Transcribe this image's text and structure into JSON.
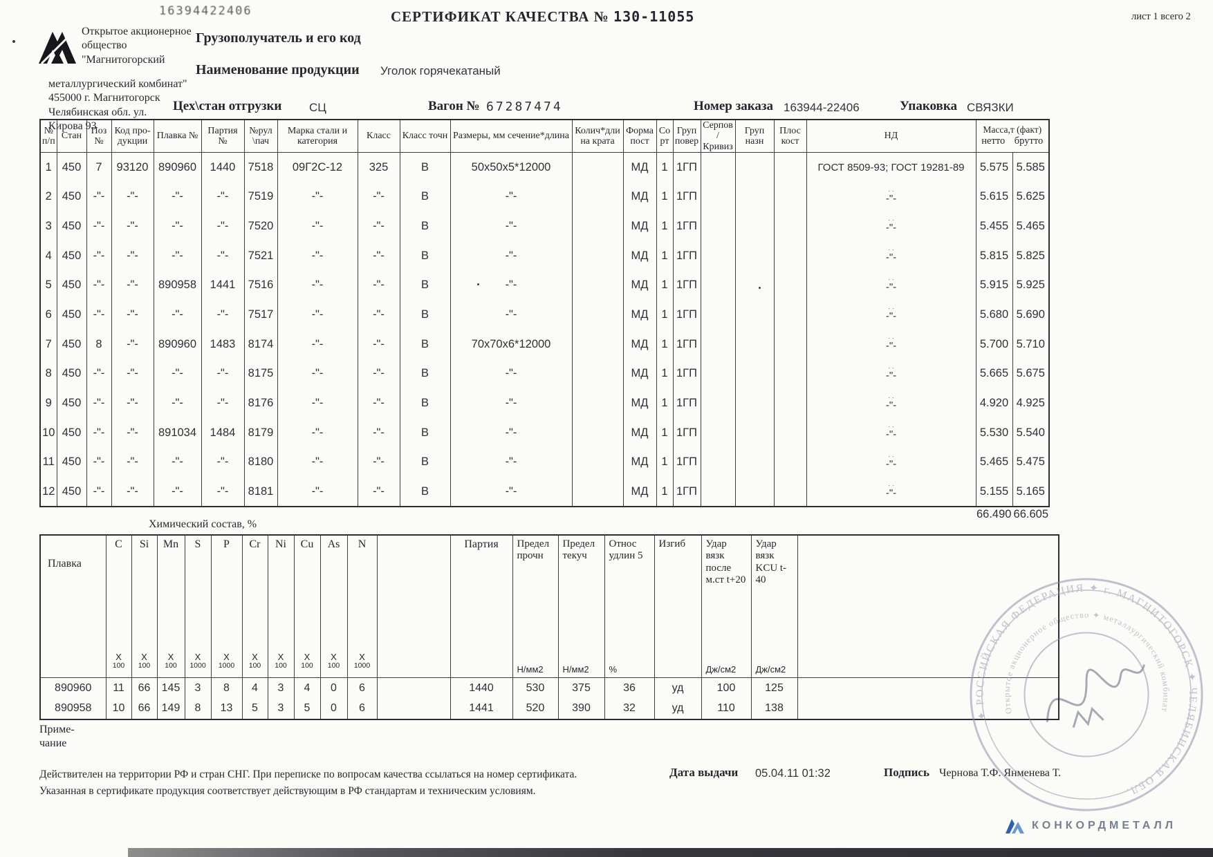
{
  "page": {
    "scan_number": "16394422406",
    "title": "СЕРТИФИКАТ КАЧЕСТВА №",
    "title_number": "130-11055",
    "sheet_label": "лист 1 всего 2",
    "company_lines_1": [
      "Открытое акционерное",
      "общество",
      "\"Магнитогорский"
    ],
    "company_lines_2": [
      "металлургический комбинат\"",
      "455000 г. Магнитогорск",
      "Челябинская обл.  ул.",
      "Кирова 93"
    ],
    "consignee_label": "Грузополучатель и его код",
    "product_label": "Наименование продукции",
    "product_value": "Уголок горячекатаный",
    "shop_label": "Цех\\стан отгрузки",
    "shop_value": "СЦ",
    "wagon_label": "Вагон №",
    "wagon_value": "67287474",
    "order_label": "Номер заказа",
    "order_value": "163944-22406",
    "packing_label": "Упаковка",
    "packing_value": "СВЯЗКИ"
  },
  "main_table": {
    "headers": [
      "№ п/п",
      "Стан",
      "Поз №",
      "Код про- дукции",
      "Плавка №",
      "Партия №",
      "№рул \\пач",
      "Марка стали и категория",
      "Класс",
      "Класс точн",
      "Размеры, мм сечение*длина",
      "Колич*дли на крата",
      "Форма пост",
      "Со рт",
      "Груп повер",
      "Серпов /Кривиз",
      "Груп назн",
      "Плос кост",
      "НД"
    ],
    "mass_header": "Масса,т (факт)",
    "mass_sub": [
      "нетто",
      "брутто"
    ],
    "rows": [
      [
        "1",
        "450",
        "7",
        "93120",
        "890960",
        "1440",
        "7518",
        "09Г2С-12",
        "325",
        "В",
        "50x50x5*12000",
        "",
        "МД",
        "1",
        "1ГП",
        "",
        "",
        "",
        "ГОСТ 8509-93; ГОСТ 19281-89",
        "5.575",
        "5.585"
      ],
      [
        "2",
        "450",
        "-\"-",
        "-\"-",
        "-\"-",
        "-\"-",
        "7519",
        "-\"-",
        "-\"-",
        "В",
        "-\"-",
        "",
        "МД",
        "1",
        "1ГП",
        "",
        "",
        "",
        "-\"-",
        "5.615",
        "5.625"
      ],
      [
        "3",
        "450",
        "-\"-",
        "-\"-",
        "-\"-",
        "-\"-",
        "7520",
        "-\"-",
        "-\"-",
        "В",
        "-\"-",
        "",
        "МД",
        "1",
        "1ГП",
        "",
        "",
        "",
        "-\"-",
        "5.455",
        "5.465"
      ],
      [
        "4",
        "450",
        "-\"-",
        "-\"-",
        "-\"-",
        "-\"-",
        "7521",
        "-\"-",
        "-\"-",
        "В",
        "-\"-",
        "",
        "МД",
        "1",
        "1ГП",
        "",
        "",
        "",
        "-\"-",
        "5.815",
        "5.825"
      ],
      [
        "5",
        "450",
        "-\"-",
        "-\"-",
        "890958",
        "1441",
        "7516",
        "-\"-",
        "-\"-",
        "В",
        "-\"-",
        "",
        "МД",
        "1",
        "1ГП",
        "",
        "",
        "",
        "-\"-",
        "5.915",
        "5.925"
      ],
      [
        "6",
        "450",
        "-\"-",
        "-\"-",
        "-\"-",
        "-\"-",
        "7517",
        "-\"-",
        "-\"-",
        "В",
        "-\"-",
        "",
        "МД",
        "1",
        "1ГП",
        "",
        "",
        "",
        "-\"-",
        "5.680",
        "5.690"
      ],
      [
        "7",
        "450",
        "8",
        "-\"-",
        "890960",
        "1483",
        "8174",
        "-\"-",
        "-\"-",
        "В",
        "70x70x6*12000",
        "",
        "МД",
        "1",
        "1ГП",
        "",
        "",
        "",
        "-\"-",
        "5.700",
        "5.710"
      ],
      [
        "8",
        "450",
        "-\"-",
        "-\"-",
        "-\"-",
        "-\"-",
        "8175",
        "-\"-",
        "-\"-",
        "В",
        "-\"-",
        "",
        "МД",
        "1",
        "1ГП",
        "",
        "",
        "",
        "-\"-",
        "5.665",
        "5.675"
      ],
      [
        "9",
        "450",
        "-\"-",
        "-\"-",
        "-\"-",
        "-\"-",
        "8176",
        "-\"-",
        "-\"-",
        "В",
        "-\"-",
        "",
        "МД",
        "1",
        "1ГП",
        "",
        "",
        "",
        "-\"-",
        "4.920",
        "4.925"
      ],
      [
        "10",
        "450",
        "-\"-",
        "-\"-",
        "891034",
        "1484",
        "8179",
        "-\"-",
        "-\"-",
        "В",
        "-\"-",
        "",
        "МД",
        "1",
        "1ГП",
        "",
        "",
        "",
        "-\"-",
        "5.530",
        "5.540"
      ],
      [
        "11",
        "450",
        "-\"-",
        "-\"-",
        "-\"-",
        "-\"-",
        "8180",
        "-\"-",
        "-\"-",
        "В",
        "-\"-",
        "",
        "МД",
        "1",
        "1ГП",
        "",
        "",
        "",
        "-\"-",
        "5.465",
        "5.475"
      ],
      [
        "12",
        "450",
        "-\"-",
        "-\"-",
        "-\"-",
        "-\"-",
        "8181",
        "-\"-",
        "-\"-",
        "В",
        "-\"-",
        "",
        "МД",
        "1",
        "1ГП",
        "",
        "",
        "",
        "-\"-",
        "5.155",
        "5.165"
      ]
    ],
    "total_netto": "66.490",
    "total_brutto": "66.605"
  },
  "chem_table": {
    "title": "Химический состав, %",
    "heat_label": "Плавка",
    "elements": [
      "C",
      "Si",
      "Mn",
      "S",
      "P",
      "Cr",
      "Ni",
      "Cu",
      "As",
      "N"
    ],
    "x_label": "X",
    "divisors": [
      "100",
      "100",
      "100",
      "1000",
      "1000",
      "100",
      "100",
      "100",
      "100",
      "1000"
    ],
    "mech_headers": [
      {
        "label": "Партия",
        "unit": ""
      },
      {
        "label": "Предел прочн",
        "unit": "Н/мм2"
      },
      {
        "label": "Предел текуч",
        "unit": "Н/мм2"
      },
      {
        "label": "Относ удлин 5",
        "unit": "%"
      },
      {
        "label": "Изгиб",
        "unit": ""
      },
      {
        "label": "Удар вязк после м.ст t+20",
        "unit": "Дж/см2"
      },
      {
        "label": "Удар вязк KCU t-40",
        "unit": "Дж/см2"
      }
    ],
    "rows": [
      {
        "heat": "890960",
        "chem": [
          "11",
          "66",
          "145",
          "3",
          "8",
          "4",
          "3",
          "4",
          "0",
          "6"
        ],
        "mech": [
          "1440",
          "530",
          "375",
          "36",
          "уд",
          "100",
          "125"
        ]
      },
      {
        "heat": "890958",
        "chem": [
          "10",
          "66",
          "149",
          "8",
          "13",
          "5",
          "3",
          "5",
          "0",
          "6"
        ],
        "mech": [
          "1441",
          "520",
          "390",
          "32",
          "уд",
          "110",
          "138"
        ]
      }
    ]
  },
  "footer": {
    "note_line1": "Приме-",
    "note_line2": "чание",
    "legal_line1": "Действителен на территории РФ и стран СНГ. При переписке по вопросам качества ссылаться на номер сертификата.",
    "legal_line2": "Указанная в сертификате продукция соответствует действующим в РФ стандартам и техническим условиям.",
    "date_label": "Дата выдачи",
    "date_value": "05.04.11 01:32",
    "sign_label": "Подпись",
    "sign_value": "Чернова Т.Ф. Янменева Т.",
    "brand": "КОНКОРДМЕТАЛЛ"
  },
  "stamp": {
    "outer_text": "✦ РОССИЙСКАЯ ФЕДЕРАЦИЯ ✦ г. МАГНИТОГОРСК ✦ ЧЕЛЯБИНСКАЯ ОБЛ.",
    "inner_text": "Открытое акционерное общество ✦ металлургический комбинат"
  }
}
